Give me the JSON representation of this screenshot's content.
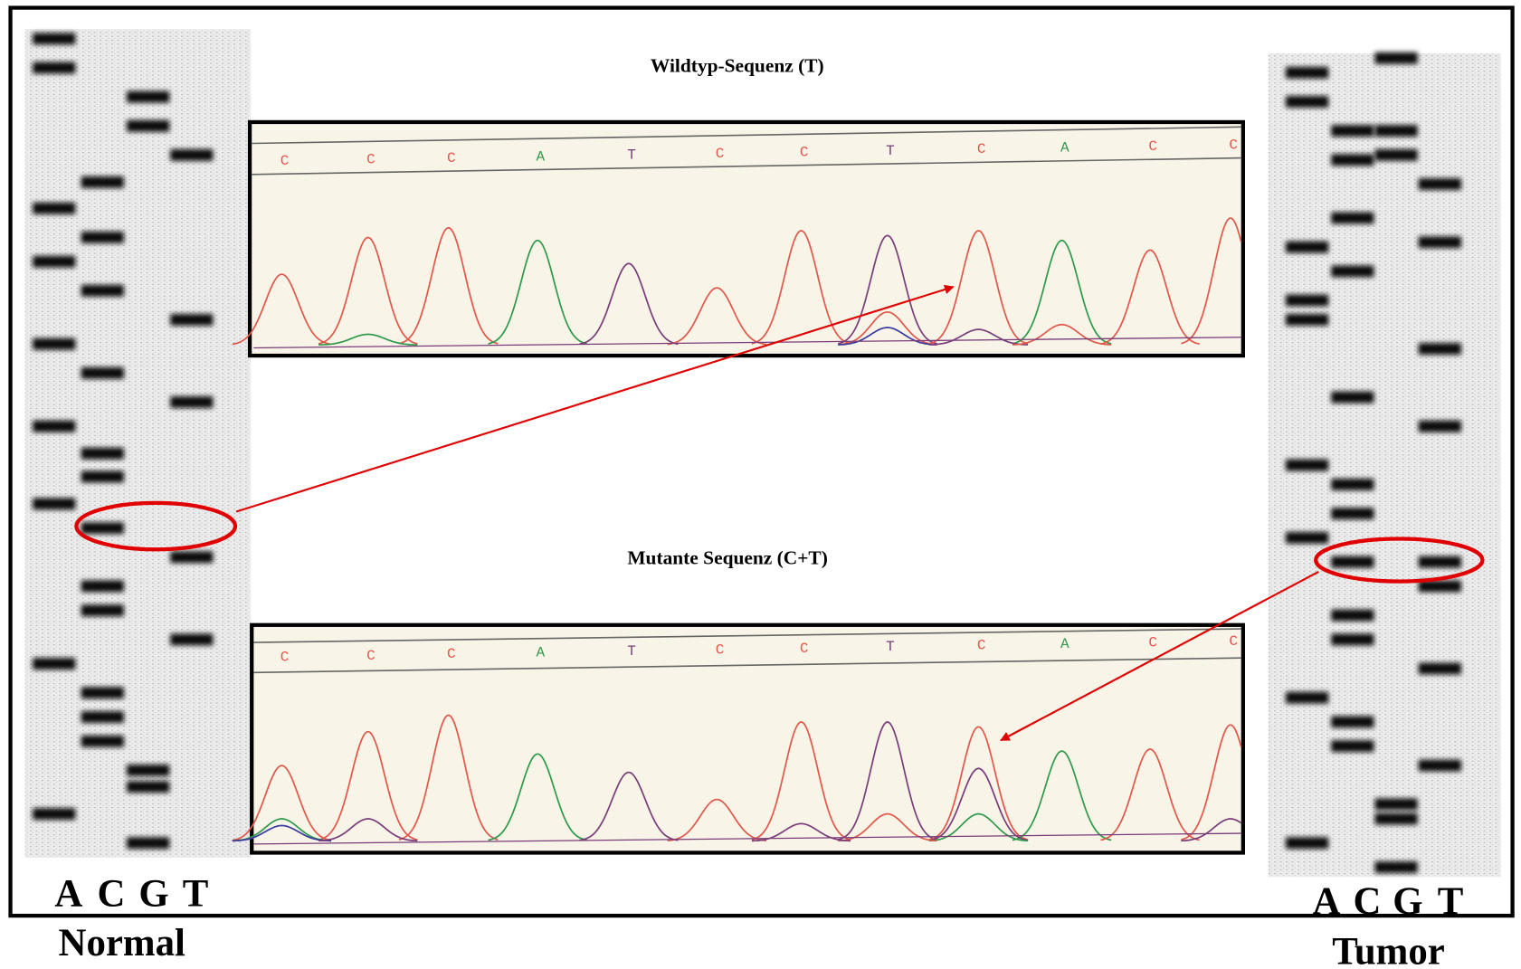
{
  "top_panel": {
    "title": "Wildtyp-Sequenz (T)",
    "bases": [
      "C",
      "C",
      "C",
      "A",
      "T",
      "C",
      "C",
      "T",
      "C",
      "A",
      "C",
      "C"
    ]
  },
  "bottom_panel": {
    "title": "Mutante Sequenz (C+T)",
    "bases": [
      "C",
      "C",
      "C",
      "A",
      "T",
      "C",
      "C",
      "T",
      "C",
      "A",
      "C",
      "C"
    ]
  },
  "left_gel": {
    "lanes": [
      "A",
      "C",
      "G",
      "T"
    ],
    "label": "Normal"
  },
  "right_gel": {
    "lanes": [
      "A",
      "C",
      "G",
      "T"
    ],
    "label": "Tumor"
  }
}
